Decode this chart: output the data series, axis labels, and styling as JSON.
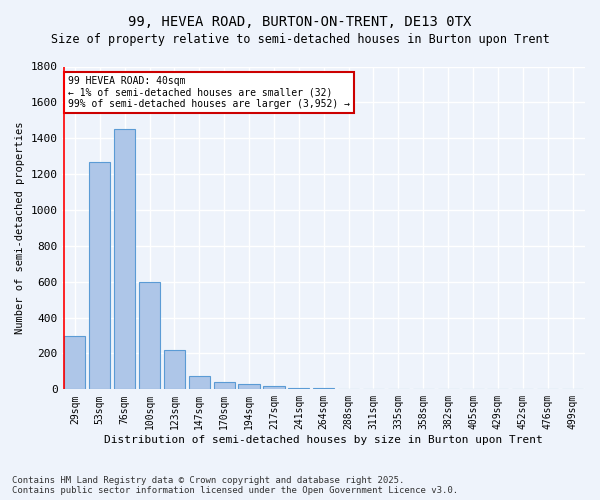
{
  "title": "99, HEVEA ROAD, BURTON-ON-TRENT, DE13 0TX",
  "subtitle": "Size of property relative to semi-detached houses in Burton upon Trent",
  "xlabel": "Distribution of semi-detached houses by size in Burton upon Trent",
  "ylabel": "Number of semi-detached properties",
  "categories": [
    "29sqm",
    "53sqm",
    "76sqm",
    "100sqm",
    "123sqm",
    "147sqm",
    "170sqm",
    "194sqm",
    "217sqm",
    "241sqm",
    "264sqm",
    "288sqm",
    "311sqm",
    "335sqm",
    "358sqm",
    "382sqm",
    "405sqm",
    "429sqm",
    "452sqm",
    "476sqm",
    "499sqm"
  ],
  "values": [
    295,
    1265,
    1450,
    600,
    220,
    75,
    40,
    28,
    18,
    10,
    5,
    3,
    2,
    1,
    1,
    0,
    0,
    0,
    0,
    0,
    0
  ],
  "bar_color": "#aec6e8",
  "bar_edge_color": "#5b9bd5",
  "bg_color": "#eef3fb",
  "grid_color": "#ffffff",
  "annotation_text": "99 HEVEA ROAD: 40sqm\n← 1% of semi-detached houses are smaller (32)\n99% of semi-detached houses are larger (3,952) →",
  "annotation_box_color": "#ffffff",
  "annotation_box_edge": "#cc0000",
  "ylim": [
    0,
    1800
  ],
  "yticks": [
    0,
    200,
    400,
    600,
    800,
    1000,
    1200,
    1400,
    1600,
    1800
  ],
  "footer": "Contains HM Land Registry data © Crown copyright and database right 2025.\nContains public sector information licensed under the Open Government Licence v3.0.",
  "title_fontsize": 10,
  "subtitle_fontsize": 8.5,
  "footer_fontsize": 6.5
}
